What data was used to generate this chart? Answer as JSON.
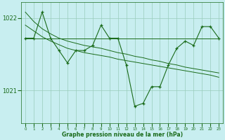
{
  "xlabel": "Graphe pression niveau de la mer (hPa)",
  "bg_color": "#c8eef0",
  "grid_color": "#99ccbb",
  "line_color": "#1a6b1a",
  "tick_color": "#1a6b1a",
  "label_color": "#1a6b1a",
  "ylim_min": 1020.55,
  "ylim_max": 1022.22,
  "yticks": [
    1021,
    1022
  ],
  "xticks": [
    0,
    1,
    2,
    3,
    4,
    5,
    6,
    7,
    8,
    9,
    10,
    11,
    12,
    13,
    14,
    15,
    16,
    17,
    18,
    19,
    20,
    21,
    22,
    23
  ],
  "main_data": [
    1021.72,
    1021.72,
    1022.08,
    1021.72,
    1021.55,
    1021.38,
    1021.55,
    1021.55,
    1021.62,
    1021.9,
    1021.72,
    1021.72,
    1021.35,
    1020.78,
    1020.82,
    1021.05,
    1021.05,
    1021.35,
    1021.58,
    1021.68,
    1021.62,
    1021.88,
    1021.88,
    1021.72
  ],
  "upper_env": [
    1022.08,
    1021.95,
    1021.85,
    1021.78,
    1021.72,
    1021.68,
    1021.65,
    1021.62,
    1021.6,
    1021.58,
    1021.55,
    1021.52,
    1021.5,
    1021.47,
    1021.45,
    1021.42,
    1021.4,
    1021.37,
    1021.35,
    1021.32,
    1021.3,
    1021.28,
    1021.26,
    1021.24
  ],
  "lower_env": [
    1021.9,
    1021.82,
    1021.74,
    1021.68,
    1021.63,
    1021.58,
    1021.55,
    1021.52,
    1021.5,
    1021.48,
    1021.46,
    1021.43,
    1021.41,
    1021.39,
    1021.37,
    1021.35,
    1021.33,
    1021.31,
    1021.29,
    1021.27,
    1021.25,
    1021.23,
    1021.21,
    1021.18
  ],
  "avg_line": [
    1021.72,
    1021.72,
    1021.72,
    1021.72,
    1021.72,
    1021.72,
    1021.72,
    1021.72,
    1021.72,
    1021.72,
    1021.72,
    1021.72,
    1021.72,
    1021.72,
    1021.72,
    1021.72,
    1021.72,
    1021.72,
    1021.72,
    1021.72,
    1021.72,
    1021.72,
    1021.72,
    1021.72
  ]
}
